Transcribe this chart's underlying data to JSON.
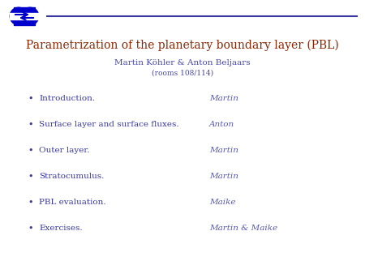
{
  "title": "Parametrization of the planetary boundary layer (PBL)",
  "subtitle": "Martin Köhler & Anton Beljaars",
  "subsubtitle": "(rooms 108/114)",
  "title_color": "#8B2500",
  "subtitle_color": "#4848A8",
  "bullet_color": "#3838A0",
  "name_color": "#5858B8",
  "line_color": "#3838A0",
  "background_color": "#ffffff",
  "bullet_items": [
    "Introduction.",
    "Surface layer and surface fluxes.",
    "Outer layer.",
    "Stratocumulus.",
    "PBL evaluation.",
    "Exercises."
  ],
  "bullet_names": [
    "Martin",
    "Anton",
    "Martin",
    "Martin",
    "Maike",
    "Martin & Maike"
  ],
  "logo_color_blue": "#0000CC",
  "logo_color_white": "#ffffff"
}
